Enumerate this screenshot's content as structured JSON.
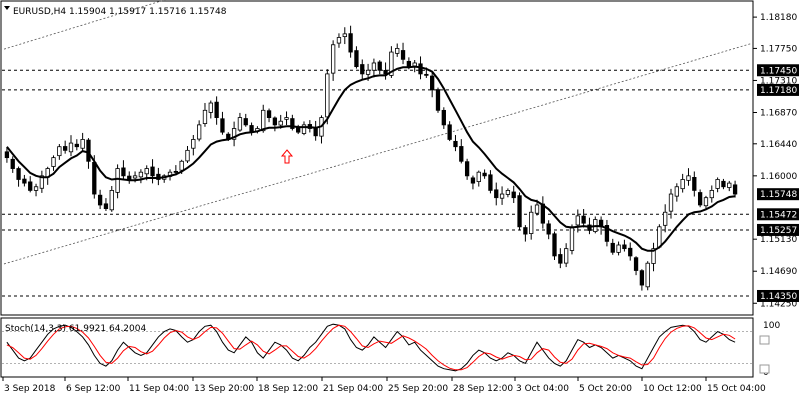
{
  "chart_title": "EURUSD,H4  1.15904 1.15917 1.15716 1.15748",
  "stoch_label": "Stoch(14,3,3) 61.9921 64.2004",
  "colors": {
    "background": "#ffffff",
    "candle": "#000000",
    "ma_line": "#000000",
    "stoch_main": "#000000",
    "stoch_signal": "#ff0000",
    "level_line": "#000000",
    "price_tag_bg": "#000000",
    "price_tag_text": "#ffffff",
    "up_arrow": "#ff0000"
  },
  "chart_data": [
    {
      "type": "candlestick",
      "symbol": "EURUSD",
      "timeframe": "H4",
      "ohlc_last": {
        "open": 1.15904,
        "high": 1.15917,
        "low": 1.15716,
        "close": 1.15748
      },
      "y_axis_ticks": [
        "1.18180",
        "1.17750",
        "1.17310",
        "1.16870",
        "1.16440",
        "1.16000",
        "1.15130",
        "1.14690",
        "1.14250"
      ],
      "ylim": [
        1.1413,
        1.1836
      ],
      "x_axis_labels": [
        "3 Sep 2018",
        "6 Sep 12:00",
        "11 Sep 04:00",
        "13 Sep 20:00",
        "18 Sep 12:00",
        "21 Sep 04:00",
        "25 Sep 20:00",
        "28 Sep 12:00",
        "3 Oct 04:00",
        "5 Oct 20:00",
        "10 Oct 12:00",
        "15 Oct 04:00"
      ],
      "price_levels": [
        {
          "value": 1.1745,
          "label": "1.17450",
          "style": "dashed"
        },
        {
          "value": 1.1718,
          "label": "1.17180",
          "style": "dashed"
        },
        {
          "value": 1.15472,
          "label": "1.15472",
          "style": "dashed"
        },
        {
          "value": 1.15257,
          "label": "1.15257",
          "style": "dashed"
        },
        {
          "value": 1.1435,
          "label": "1.14350",
          "style": "dashed"
        }
      ],
      "current_price": {
        "value": 1.15748,
        "label": "1.15748"
      },
      "trend_channel": [
        {
          "name": "lower",
          "start": 1.1479,
          "end": 1.1782
        },
        {
          "name": "upper",
          "start": 1.1774,
          "end": 1.2089
        }
      ],
      "grid": false,
      "closes": [
        1.1625,
        1.161,
        1.1595,
        1.159,
        1.158,
        1.1585,
        1.16,
        1.161,
        1.1625,
        1.164,
        1.1635,
        1.1645,
        1.164,
        1.165,
        1.162,
        1.1575,
        1.156,
        1.1555,
        1.158,
        1.161,
        1.16,
        1.1595,
        1.16,
        1.1605,
        1.161,
        1.16,
        1.1595,
        1.16,
        1.1605,
        1.1605,
        1.162,
        1.1635,
        1.165,
        1.167,
        1.169,
        1.17,
        1.168,
        1.166,
        1.165,
        1.1665,
        1.168,
        1.167,
        1.166,
        1.1665,
        1.169,
        1.168,
        1.167,
        1.1675,
        1.168,
        1.1665,
        1.166,
        1.167,
        1.1665,
        1.1655,
        1.168,
        1.174,
        1.178,
        1.179,
        1.1795,
        1.177,
        1.175,
        1.174,
        1.1745,
        1.1755,
        1.1745,
        1.174,
        1.177,
        1.1775,
        1.176,
        1.175,
        1.1755,
        1.174,
        1.1738,
        1.1718,
        1.169,
        1.167,
        1.165,
        1.164,
        1.162,
        1.16,
        1.159,
        1.1605,
        1.16,
        1.158,
        1.157,
        1.1575,
        1.158,
        1.157,
        1.153,
        1.152,
        1.155,
        1.156,
        1.1535,
        1.152,
        1.149,
        1.148,
        1.15,
        1.153,
        1.1545,
        1.1535,
        1.1525,
        1.154,
        1.153,
        1.151,
        1.1495,
        1.1505,
        1.15,
        1.149,
        1.147,
        1.145,
        1.148,
        1.15,
        1.153,
        1.155,
        1.1575,
        1.1585,
        1.1595,
        1.16,
        1.158,
        1.156,
        1.157,
        1.158,
        1.1595,
        1.1585,
        1.159,
        1.1575
      ],
      "moving_average": [
        1.164,
        1.163,
        1.162,
        1.1612,
        1.1604,
        1.16,
        1.1598,
        1.1598,
        1.1603,
        1.1612,
        1.1618,
        1.1624,
        1.1628,
        1.1634,
        1.1632,
        1.162,
        1.1607,
        1.1598,
        1.1595,
        1.1596,
        1.1595,
        1.1594,
        1.1594,
        1.1595,
        1.1597,
        1.1597,
        1.1597,
        1.1598,
        1.16,
        1.1602,
        1.1606,
        1.1611,
        1.1617,
        1.1625,
        1.1634,
        1.1643,
        1.1647,
        1.1649,
        1.165,
        1.1653,
        1.1657,
        1.1659,
        1.166,
        1.1661,
        1.1664,
        1.1666,
        1.1666,
        1.1667,
        1.1668,
        1.1668,
        1.1667,
        1.1667,
        1.1667,
        1.1666,
        1.1668,
        1.1678,
        1.1692,
        1.1706,
        1.1718,
        1.1725,
        1.1729,
        1.1732,
        1.1734,
        1.1737,
        1.1738,
        1.1738,
        1.1743,
        1.1747,
        1.1749,
        1.1749,
        1.175,
        1.1749,
        1.1747,
        1.1743,
        1.1733,
        1.172,
        1.1705,
        1.169,
        1.1675,
        1.166,
        1.1647,
        1.1639,
        1.163,
        1.162,
        1.161,
        1.1603,
        1.1597,
        1.1591,
        1.1582,
        1.1572,
        1.1567,
        1.1565,
        1.156,
        1.1554,
        1.1545,
        1.1536,
        1.153,
        1.1529,
        1.153,
        1.1531,
        1.153,
        1.1531,
        1.1531,
        1.1528,
        1.1524,
        1.1521,
        1.1518,
        1.1514,
        1.1508,
        1.15,
        1.1497,
        1.1497,
        1.1502,
        1.151,
        1.152,
        1.153,
        1.1539,
        1.1547,
        1.155,
        1.1551,
        1.1554,
        1.1558,
        1.1564,
        1.1567,
        1.1571,
        1.1572
      ]
    },
    {
      "type": "line",
      "name": "Stoch(14,3,3)",
      "values_shown": [
        61.9921,
        64.2004
      ],
      "y_axis_ticks": [
        "100",
        "0"
      ],
      "ylim": [
        0,
        100
      ],
      "series": [
        {
          "name": "main",
          "values": [
            60,
            45,
            30,
            25,
            30,
            45,
            60,
            75,
            85,
            90,
            92,
            88,
            80,
            70,
            55,
            35,
            20,
            15,
            25,
            45,
            60,
            50,
            40,
            35,
            40,
            55,
            70,
            80,
            85,
            82,
            70,
            60,
            65,
            80,
            90,
            92,
            80,
            60,
            45,
            40,
            55,
            70,
            60,
            40,
            30,
            45,
            60,
            55,
            45,
            30,
            25,
            35,
            50,
            60,
            75,
            90,
            94,
            92,
            85,
            65,
            50,
            45,
            55,
            70,
            60,
            50,
            65,
            80,
            70,
            55,
            60,
            45,
            35,
            25,
            15,
            10,
            8,
            6,
            10,
            20,
            35,
            45,
            40,
            30,
            25,
            30,
            40,
            35,
            25,
            20,
            40,
            60,
            45,
            30,
            20,
            15,
            25,
            45,
            65,
            60,
            50,
            55,
            50,
            40,
            30,
            35,
            30,
            25,
            15,
            10,
            30,
            50,
            70,
            80,
            88,
            90,
            92,
            90,
            80,
            65,
            60,
            70,
            80,
            75,
            65,
            60
          ]
        },
        {
          "name": "signal",
          "values": [
            55,
            50,
            40,
            30,
            28,
            35,
            48,
            62,
            75,
            85,
            89,
            90,
            86,
            79,
            68,
            52,
            35,
            22,
            20,
            30,
            44,
            52,
            50,
            42,
            38,
            43,
            55,
            68,
            78,
            82,
            79,
            70,
            65,
            70,
            80,
            88,
            87,
            77,
            62,
            48,
            47,
            55,
            62,
            55,
            43,
            38,
            45,
            53,
            53,
            43,
            33,
            30,
            37,
            48,
            62,
            75,
            86,
            92,
            90,
            80,
            67,
            53,
            50,
            57,
            62,
            60,
            58,
            65,
            72,
            68,
            62,
            55,
            47,
            35,
            25,
            17,
            11,
            8,
            8,
            12,
            22,
            33,
            40,
            38,
            32,
            28,
            32,
            35,
            33,
            27,
            28,
            40,
            48,
            45,
            32,
            22,
            20,
            28,
            45,
            57,
            58,
            55,
            52,
            48,
            40,
            35,
            32,
            30,
            23,
            17,
            18,
            30,
            50,
            67,
            79,
            86,
            90,
            91,
            87,
            78,
            68,
            65,
            70,
            75,
            73,
            66
          ]
        }
      ]
    }
  ]
}
